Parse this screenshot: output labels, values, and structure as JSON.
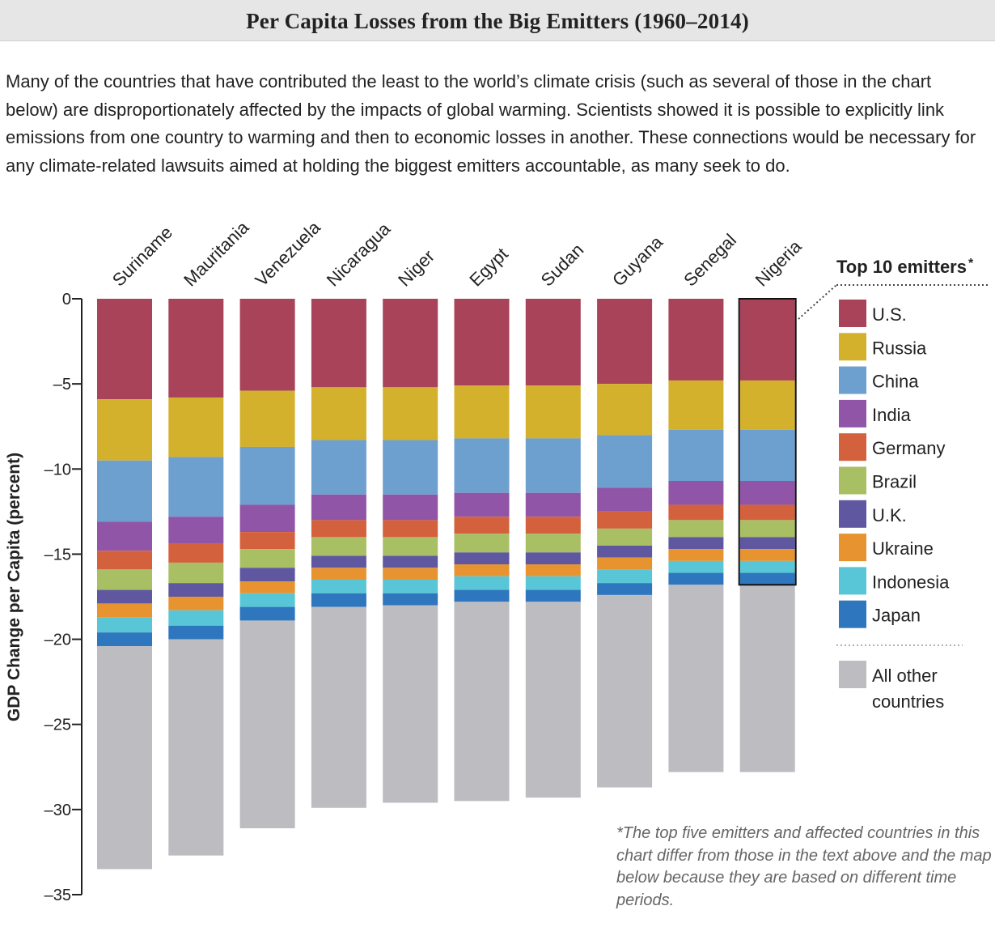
{
  "header": {
    "title": "Per Capita Losses from the Big Emitters (1960–2014)"
  },
  "intro": {
    "text": "Many of the countries that have contributed the least to the world’s climate crisis (such as several of those in the chart below) are disproportionately affected by the impacts of global warming. Scientists showed it is possible to explicitly link emissions from one country to warming and then to economic losses in another. These connections would be necessary for any climate-related lawsuits aimed at holding the biggest emitters accountable, as many seek to do."
  },
  "footnote": {
    "mark": "*",
    "text": "The top five emitters and affected countries in this chart differ from those in the text above and the map below because they are based on different time periods."
  },
  "legend": {
    "title": "Top 10 emitters",
    "title_mark": "*",
    "other_label_line1": "All other",
    "other_label_line2": "countries"
  },
  "chart_data": {
    "type": "bar",
    "stacked": true,
    "title": "Per Capita Losses from the Big Emitters (1960–2014)",
    "xlabel": "",
    "ylabel": "GDP Change per Capita (percent)",
    "ylim": [
      -35,
      0
    ],
    "yticks": [
      0,
      -5,
      -10,
      -15,
      -20,
      -25,
      -30,
      -35
    ],
    "ytick_labels": [
      "0",
      "–5",
      "–10",
      "–15",
      "–20",
      "–25",
      "–30",
      "–35"
    ],
    "categories": [
      "Suriname",
      "Mauritania",
      "Venezuela",
      "Nicaragua",
      "Niger",
      "Egypt",
      "Sudan",
      "Guyana",
      "Senegal",
      "Nigeria"
    ],
    "highlight_category": "Nigeria",
    "series": [
      {
        "name": "U.S.",
        "color": "#a8435a",
        "values": [
          -5.9,
          -5.8,
          -5.4,
          -5.2,
          -5.2,
          -5.1,
          -5.1,
          -5.0,
          -4.8,
          -4.8
        ]
      },
      {
        "name": "Russia",
        "color": "#d4b12d",
        "values": [
          -3.6,
          -3.5,
          -3.3,
          -3.1,
          -3.1,
          -3.1,
          -3.1,
          -3.0,
          -2.9,
          -2.9
        ]
      },
      {
        "name": "China",
        "color": "#6ea0cf",
        "values": [
          -3.6,
          -3.5,
          -3.4,
          -3.2,
          -3.2,
          -3.2,
          -3.2,
          -3.1,
          -3.0,
          -3.0
        ]
      },
      {
        "name": "India",
        "color": "#9155a7",
        "values": [
          -1.7,
          -1.6,
          -1.6,
          -1.5,
          -1.5,
          -1.4,
          -1.4,
          -1.4,
          -1.4,
          -1.4
        ]
      },
      {
        "name": "Germany",
        "color": "#d4613e",
        "values": [
          -1.1,
          -1.1,
          -1.0,
          -1.0,
          -1.0,
          -1.0,
          -1.0,
          -1.0,
          -0.9,
          -0.9
        ]
      },
      {
        "name": "Brazil",
        "color": "#a9bf64",
        "values": [
          -1.2,
          -1.2,
          -1.1,
          -1.1,
          -1.1,
          -1.1,
          -1.1,
          -1.0,
          -1.0,
          -1.0
        ]
      },
      {
        "name": "U.K.",
        "color": "#5f58a1",
        "values": [
          -0.8,
          -0.8,
          -0.8,
          -0.7,
          -0.7,
          -0.7,
          -0.7,
          -0.7,
          -0.7,
          -0.7
        ]
      },
      {
        "name": "Ukraine",
        "color": "#e69330",
        "values": [
          -0.8,
          -0.8,
          -0.7,
          -0.7,
          -0.7,
          -0.7,
          -0.7,
          -0.7,
          -0.7,
          -0.7
        ]
      },
      {
        "name": "Indonesia",
        "color": "#58c6d6",
        "values": [
          -0.9,
          -0.9,
          -0.8,
          -0.8,
          -0.8,
          -0.8,
          -0.8,
          -0.8,
          -0.7,
          -0.7
        ]
      },
      {
        "name": "Japan",
        "color": "#2e76bd",
        "values": [
          -0.8,
          -0.8,
          -0.8,
          -0.8,
          -0.7,
          -0.7,
          -0.7,
          -0.7,
          -0.7,
          -0.7
        ]
      },
      {
        "name": "All other countries",
        "color": "#bcbcc1",
        "values": [
          -13.1,
          -12.7,
          -12.2,
          -11.8,
          -11.6,
          -11.7,
          -11.5,
          -11.3,
          -11.0,
          -11.0
        ]
      }
    ]
  }
}
